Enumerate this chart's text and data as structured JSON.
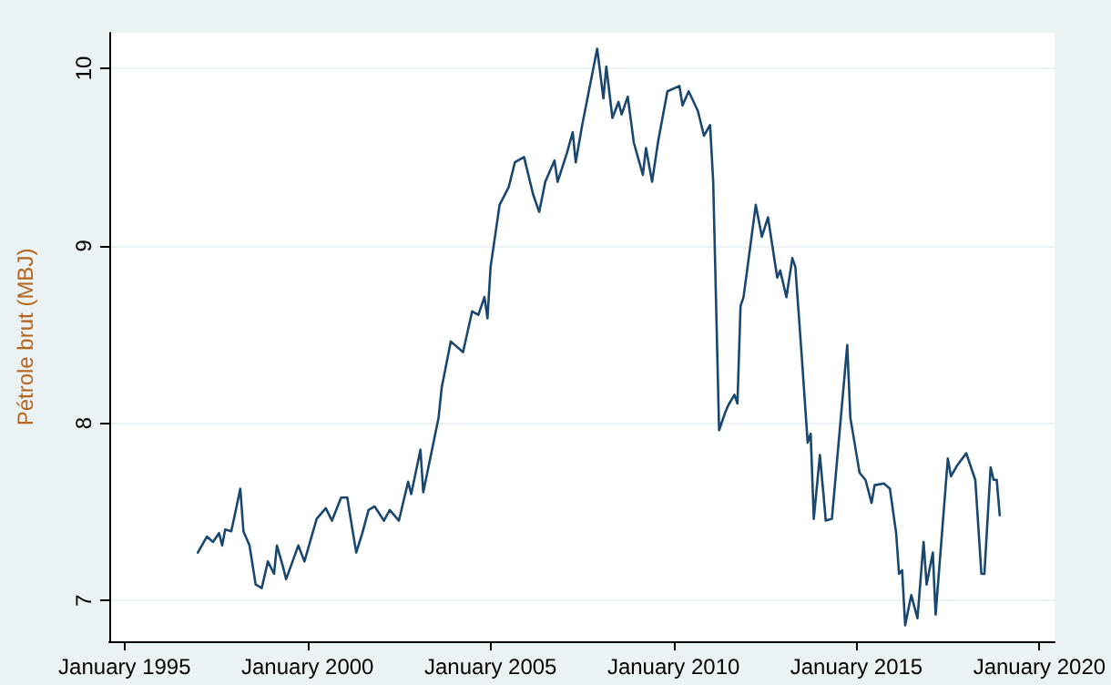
{
  "chart_data": {
    "type": "line",
    "ylabel": "Pétrole brut (MBJ)",
    "xlim": [
      "1994-08",
      "2020-06"
    ],
    "ylim": [
      6.77,
      10.2
    ],
    "xticks": [
      {
        "value": "1995-01",
        "label": "January 1995"
      },
      {
        "value": "2000-01",
        "label": "January 2000"
      },
      {
        "value": "2005-01",
        "label": "January 2005"
      },
      {
        "value": "2010-01",
        "label": "January 2010"
      },
      {
        "value": "2015-01",
        "label": "January 2015"
      },
      {
        "value": "2020-01",
        "label": "January 2020"
      }
    ],
    "yticks": [
      7,
      8,
      9,
      10
    ],
    "grid": "y",
    "marker": "none",
    "line_style": "solid",
    "series": [
      {
        "color": "#1a476f",
        "x": [
          "1997-01",
          "1997-04",
          "1997-06",
          "1997-08",
          "1997-09",
          "1997-10",
          "1997-12",
          "1998-03",
          "1998-04",
          "1998-06",
          "1998-08",
          "1998-10",
          "1998-12",
          "1999-02",
          "1999-03",
          "1999-05",
          "1999-06",
          "1999-10",
          "1999-12",
          "2000-04",
          "2000-07",
          "2000-09",
          "2000-12",
          "2001-02",
          "2001-03",
          "2001-05",
          "2001-07",
          "2001-09",
          "2001-11",
          "2002-02",
          "2002-04",
          "2002-07",
          "2002-10",
          "2002-11",
          "2003-02",
          "2003-03",
          "2003-08",
          "2003-09",
          "2003-12",
          "2004-04",
          "2004-07",
          "2004-09",
          "2004-11",
          "2004-12",
          "2005-01",
          "2005-04",
          "2005-07",
          "2005-09",
          "2005-12",
          "2006-03",
          "2006-05",
          "2006-07",
          "2006-10",
          "2006-11",
          "2007-02",
          "2007-04",
          "2007-05",
          "2007-07",
          "2007-12",
          "2008-02",
          "2008-03",
          "2008-05",
          "2008-07",
          "2008-08",
          "2008-10",
          "2008-12",
          "2009-03",
          "2009-04",
          "2009-06",
          "2009-08",
          "2009-11",
          "2010-03",
          "2010-04",
          "2010-06",
          "2010-09",
          "2010-11",
          "2011-01",
          "2011-02",
          "2011-04",
          "2011-06",
          "2011-07",
          "2011-09",
          "2011-10",
          "2011-11",
          "2011-12",
          "2012-04",
          "2012-06",
          "2012-08",
          "2012-11",
          "2012-12",
          "2013-02",
          "2013-04",
          "2013-05",
          "2013-07",
          "2013-09",
          "2013-10",
          "2013-11",
          "2014-01",
          "2014-03",
          "2014-05",
          "2014-10",
          "2014-11",
          "2015-02",
          "2015-04",
          "2015-06",
          "2015-07",
          "2015-10",
          "2015-12",
          "2016-02",
          "2016-03",
          "2016-04",
          "2016-05",
          "2016-07",
          "2016-09",
          "2016-11",
          "2016-12",
          "2017-02",
          "2017-03",
          "2017-05",
          "2017-07",
          "2017-08",
          "2017-10",
          "2018-01",
          "2018-04",
          "2018-06",
          "2018-07",
          "2018-09",
          "2018-10",
          "2018-11",
          "2018-12"
        ],
        "values": [
          7.27,
          7.36,
          7.33,
          7.38,
          7.31,
          7.4,
          7.39,
          7.63,
          7.39,
          7.31,
          7.09,
          7.07,
          7.22,
          7.15,
          7.31,
          7.19,
          7.12,
          7.31,
          7.22,
          7.46,
          7.52,
          7.45,
          7.58,
          7.58,
          7.48,
          7.27,
          7.38,
          7.51,
          7.53,
          7.45,
          7.51,
          7.45,
          7.67,
          7.6,
          7.85,
          7.61,
          8.03,
          8.2,
          8.46,
          8.4,
          8.63,
          8.61,
          8.71,
          8.59,
          8.88,
          9.23,
          9.33,
          9.47,
          9.5,
          9.29,
          9.19,
          9.36,
          9.48,
          9.36,
          9.52,
          9.64,
          9.47,
          9.67,
          10.11,
          9.83,
          10.01,
          9.72,
          9.81,
          9.74,
          9.84,
          9.58,
          9.4,
          9.55,
          9.36,
          9.59,
          9.87,
          9.9,
          9.79,
          9.87,
          9.76,
          9.62,
          9.68,
          9.36,
          7.96,
          8.06,
          8.1,
          8.16,
          8.11,
          8.66,
          8.71,
          9.23,
          9.05,
          9.16,
          8.82,
          8.86,
          8.71,
          8.93,
          8.88,
          8.4,
          7.89,
          7.94,
          7.46,
          7.82,
          7.45,
          7.46,
          8.44,
          8.03,
          7.72,
          7.68,
          7.55,
          7.65,
          7.66,
          7.63,
          7.38,
          7.15,
          7.17,
          6.86,
          7.03,
          6.9,
          7.33,
          7.09,
          7.27,
          6.92,
          7.36,
          7.8,
          7.7,
          7.76,
          7.83,
          7.68,
          7.15,
          7.15,
          7.75,
          7.68,
          7.68,
          7.48
        ]
      }
    ]
  }
}
